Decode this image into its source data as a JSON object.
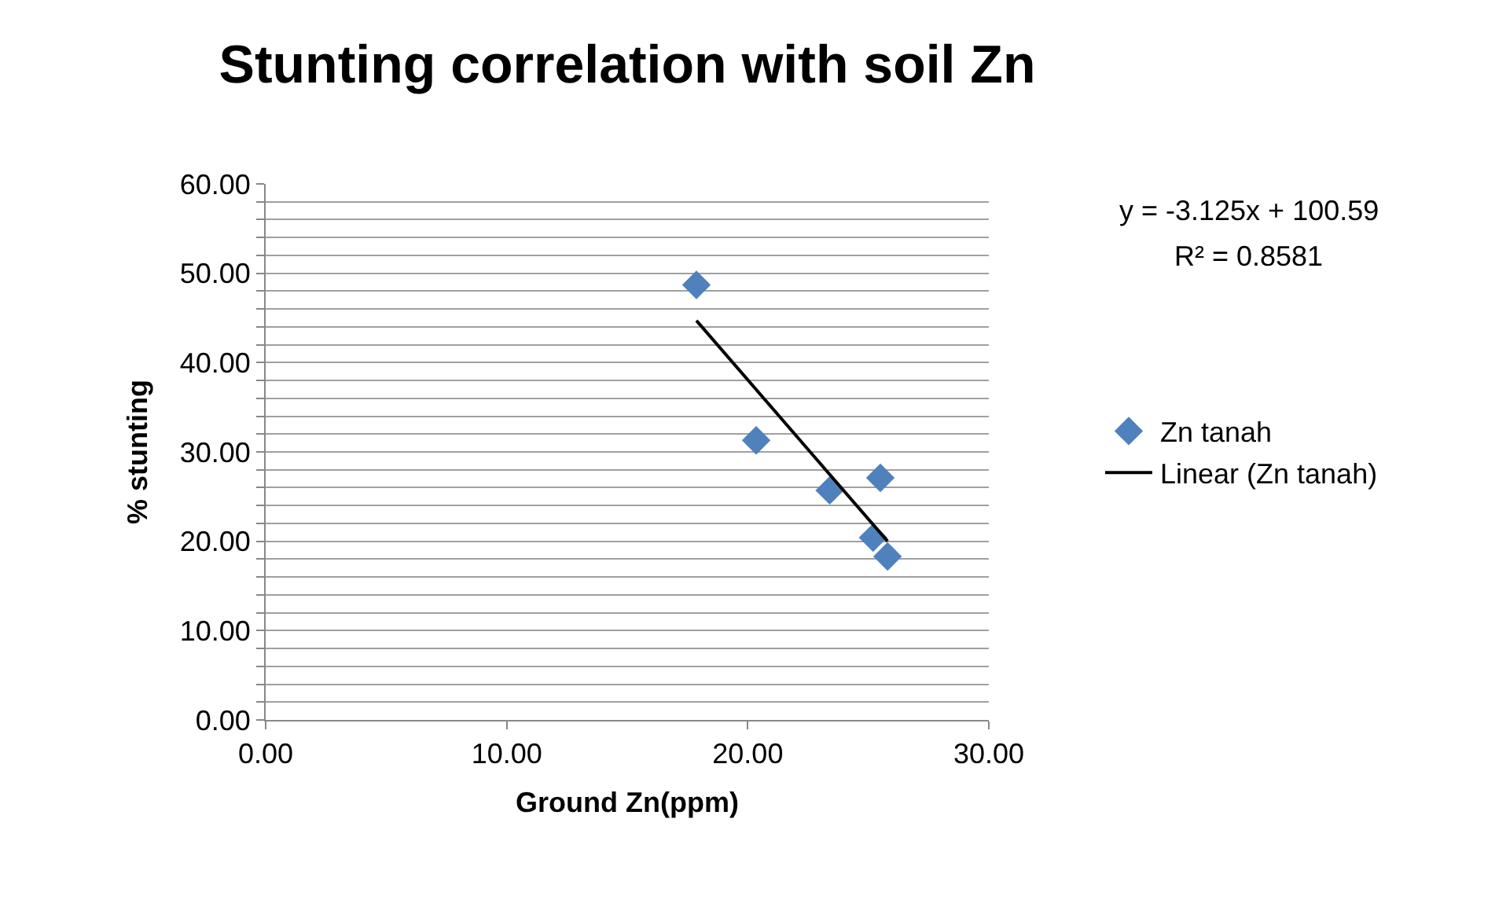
{
  "chart_data": {
    "type": "scatter",
    "title": "Stunting correlation with soil Zn",
    "xlabel": "Ground Zn(ppm)",
    "ylabel": "% stunting",
    "series": [
      {
        "name": "Zn tanah",
        "color": "#4f81bd",
        "marker": "diamond",
        "x": [
          17.87,
          20.35,
          23.4,
          25.5,
          25.2,
          25.8
        ],
        "values": [
          48.7,
          31.3,
          25.7,
          27.1,
          20.4,
          18.3
        ]
      },
      {
        "name": "Linear (Zn tanah)",
        "type": "line",
        "color": "#000000",
        "marker": "none",
        "line_style": "solid",
        "x": [
          17.87,
          25.8
        ],
        "values": [
          44.7,
          20.0
        ]
      }
    ],
    "annotations": [
      "y = -3.125x + 100.59",
      "R² = 0.8581"
    ],
    "xlim": [
      0,
      30
    ],
    "xticks": [
      {
        "value": 0,
        "label": "0.00"
      },
      {
        "value": 10,
        "label": "10.00"
      },
      {
        "value": 20,
        "label": "20.00"
      },
      {
        "value": 30,
        "label": "30.00"
      }
    ],
    "ylim": [
      0,
      60
    ],
    "yticks": [
      {
        "value": 0,
        "label": "0.00"
      },
      {
        "value": 2,
        "label": null
      },
      {
        "value": 4,
        "label": null
      },
      {
        "value": 6,
        "label": null
      },
      {
        "value": 8,
        "label": null
      },
      {
        "value": 10,
        "label": "10.00"
      },
      {
        "value": 12,
        "label": null
      },
      {
        "value": 14,
        "label": null
      },
      {
        "value": 16,
        "label": null
      },
      {
        "value": 18,
        "label": null
      },
      {
        "value": 20,
        "label": "20.00"
      },
      {
        "value": 22,
        "label": null
      },
      {
        "value": 24,
        "label": null
      },
      {
        "value": 26,
        "label": null
      },
      {
        "value": 28,
        "label": null
      },
      {
        "value": 30,
        "label": "30.00"
      },
      {
        "value": 32,
        "label": null
      },
      {
        "value": 34,
        "label": null
      },
      {
        "value": 36,
        "label": null
      },
      {
        "value": 38,
        "label": null
      },
      {
        "value": 40,
        "label": "40.00"
      },
      {
        "value": 42,
        "label": null
      },
      {
        "value": 44,
        "label": null
      },
      {
        "value": 46,
        "label": null
      },
      {
        "value": 48,
        "label": null
      },
      {
        "value": 50,
        "label": "50.00"
      },
      {
        "value": 52,
        "label": null
      },
      {
        "value": 54,
        "label": null
      },
      {
        "value": 56,
        "label": null
      },
      {
        "value": 58,
        "label": null
      },
      {
        "value": 60,
        "label": "60.00"
      }
    ],
    "grid": "y",
    "legend": "right"
  }
}
